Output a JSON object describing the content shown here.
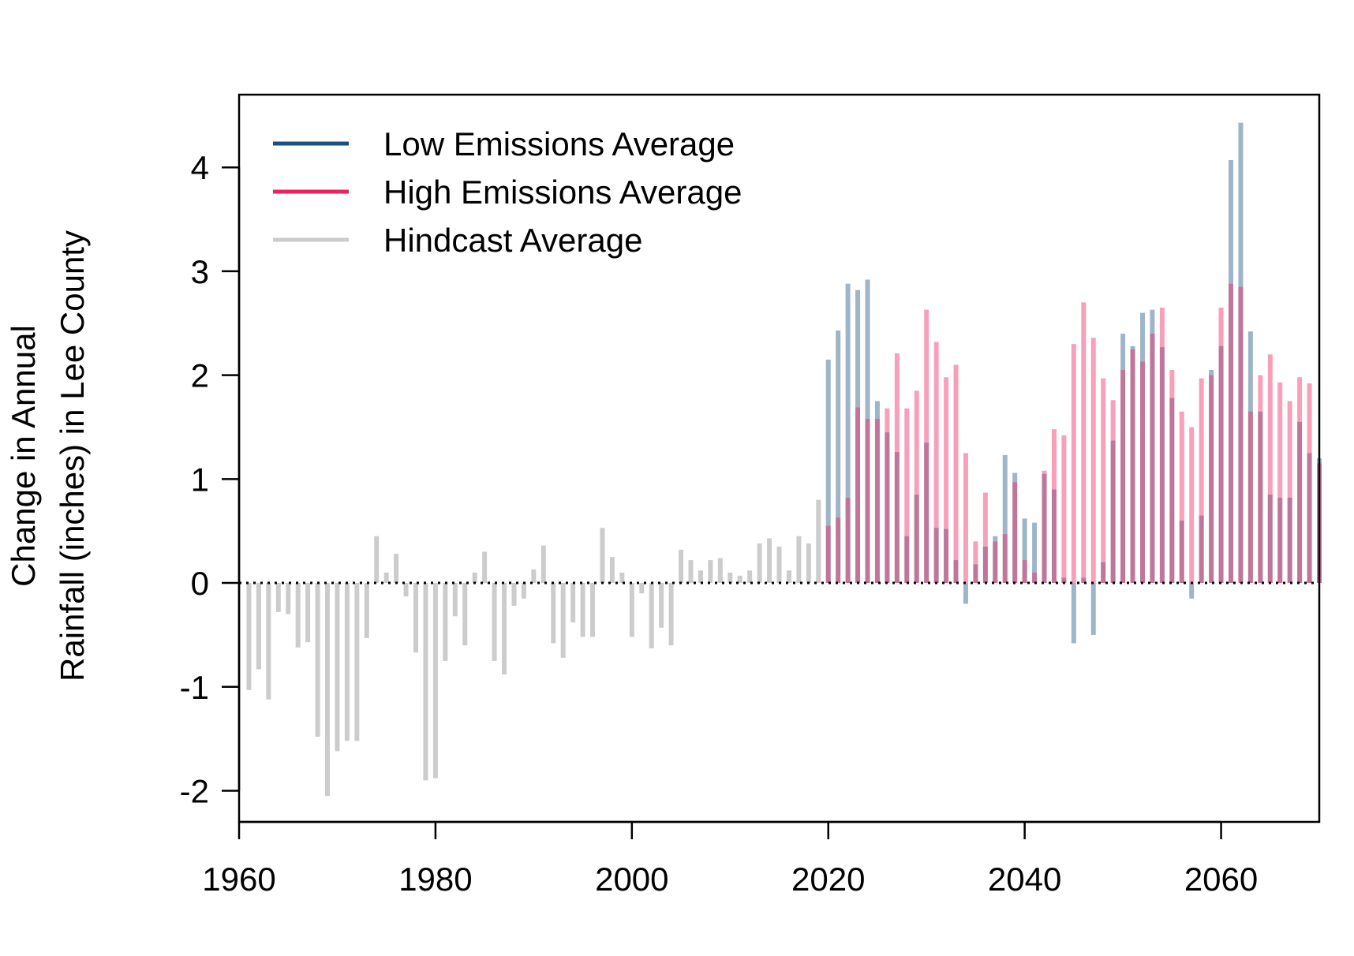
{
  "chart_data": {
    "type": "bar",
    "title": "",
    "xlabel": "",
    "ylabel_lines": [
      "Change in Annual",
      "Rainfall (inches) in Lee County"
    ],
    "xlim": [
      1960,
      2070
    ],
    "ylim": [
      -2.3,
      4.7
    ],
    "x_ticks": [
      "1960",
      "1980",
      "2000",
      "2020",
      "2040",
      "2060"
    ],
    "y_ticks": [
      "-2",
      "-1",
      "0",
      "1",
      "2",
      "3",
      "4"
    ],
    "zero_line": "dotted",
    "grid": false,
    "legend_position": "top-left",
    "series": [
      {
        "name": "Low Emissions Average",
        "color": "#1a5080",
        "x": [
          2020,
          2021,
          2022,
          2023,
          2024,
          2025,
          2026,
          2027,
          2028,
          2029,
          2030,
          2031,
          2032,
          2033,
          2034,
          2035,
          2036,
          2037,
          2038,
          2039,
          2040,
          2041,
          2042,
          2043,
          2044,
          2045,
          2046,
          2047,
          2048,
          2049,
          2050,
          2051,
          2052,
          2053,
          2054,
          2055,
          2056,
          2057,
          2058,
          2059,
          2060,
          2061,
          2062,
          2063,
          2064,
          2065,
          2066,
          2067,
          2068,
          2069,
          2070
        ],
        "values": [
          2.15,
          2.43,
          2.88,
          2.82,
          2.92,
          1.75,
          1.45,
          1.26,
          0.45,
          0.85,
          1.35,
          0.53,
          0.52,
          0.22,
          -0.2,
          0.18,
          0.35,
          0.45,
          1.23,
          1.06,
          0.62,
          0.58,
          1.05,
          0.9,
          0.05,
          -0.58,
          0.05,
          -0.5,
          0.2,
          1.37,
          2.4,
          2.28,
          2.6,
          2.63,
          2.27,
          1.78,
          0.6,
          -0.15,
          0.65,
          2.05,
          2.28,
          4.07,
          4.43,
          2.42,
          1.65,
          0.85,
          0.82,
          0.82,
          1.55,
          1.25,
          1.2
        ]
      },
      {
        "name": "High Emissions Average",
        "color": "#f0205a",
        "x": [
          2020,
          2021,
          2022,
          2023,
          2024,
          2025,
          2026,
          2027,
          2028,
          2029,
          2030,
          2031,
          2032,
          2033,
          2034,
          2035,
          2036,
          2037,
          2038,
          2039,
          2040,
          2041,
          2042,
          2043,
          2044,
          2045,
          2046,
          2047,
          2048,
          2049,
          2050,
          2051,
          2052,
          2053,
          2054,
          2055,
          2056,
          2057,
          2058,
          2059,
          2060,
          2061,
          2062,
          2063,
          2064,
          2065,
          2066,
          2067,
          2068,
          2069,
          2070
        ],
        "values": [
          0.55,
          0.63,
          0.82,
          1.69,
          1.58,
          1.58,
          1.68,
          2.21,
          1.68,
          1.85,
          2.63,
          2.32,
          1.98,
          2.1,
          1.25,
          0.4,
          0.87,
          0.4,
          0.47,
          0.97,
          0.22,
          0.1,
          1.08,
          1.48,
          1.42,
          2.3,
          2.7,
          2.36,
          1.97,
          1.76,
          2.05,
          2.25,
          2.13,
          2.4,
          2.65,
          2.05,
          1.65,
          1.5,
          1.97,
          2.0,
          2.65,
          2.88,
          2.85,
          1.65,
          2.0,
          2.2,
          1.93,
          1.75,
          1.98,
          1.92,
          1.15
        ]
      },
      {
        "name": "Hindcast Average",
        "color": "#cccccc",
        "x": [
          1961,
          1962,
          1963,
          1964,
          1965,
          1966,
          1967,
          1968,
          1969,
          1970,
          1971,
          1972,
          1973,
          1974,
          1975,
          1976,
          1977,
          1978,
          1979,
          1980,
          1981,
          1982,
          1983,
          1984,
          1985,
          1986,
          1987,
          1988,
          1989,
          1990,
          1991,
          1992,
          1993,
          1994,
          1995,
          1996,
          1997,
          1998,
          1999,
          2000,
          2001,
          2002,
          2003,
          2004,
          2005,
          2006,
          2007,
          2008,
          2009,
          2010,
          2011,
          2012,
          2013,
          2014,
          2015,
          2016,
          2017,
          2018,
          2019
        ],
        "values": [
          -1.03,
          -0.83,
          -1.12,
          -0.28,
          -0.3,
          -0.62,
          -0.57,
          -1.48,
          -2.05,
          -1.62,
          -1.52,
          -1.52,
          -0.53,
          0.45,
          0.1,
          0.28,
          -0.13,
          -0.67,
          -1.9,
          -1.88,
          -0.75,
          -0.32,
          -0.6,
          0.1,
          0.3,
          -0.75,
          -0.88,
          -0.22,
          -0.15,
          0.13,
          0.36,
          -0.58,
          -0.72,
          -0.38,
          -0.52,
          -0.52,
          0.53,
          0.25,
          0.1,
          -0.52,
          -0.1,
          -0.63,
          -0.43,
          -0.6,
          0.32,
          0.22,
          0.12,
          0.22,
          0.24,
          0.1,
          0.07,
          0.12,
          0.38,
          0.43,
          0.35,
          0.12,
          0.45,
          0.38,
          0.8
        ]
      }
    ]
  }
}
